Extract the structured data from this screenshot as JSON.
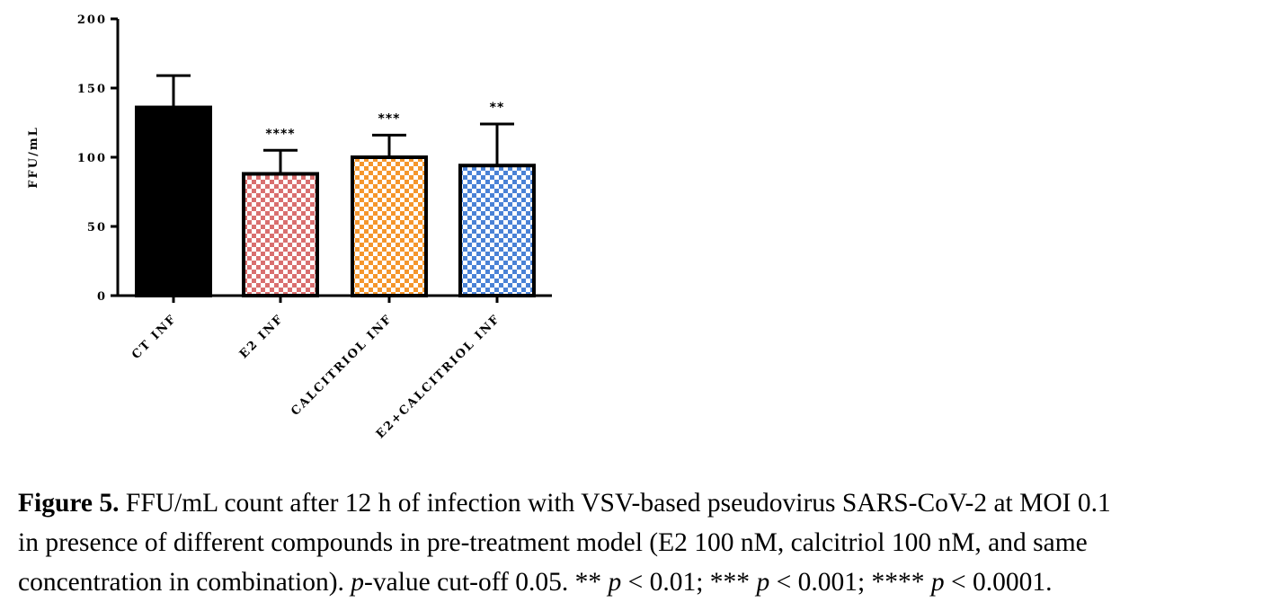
{
  "chart_data": {
    "type": "bar",
    "ylabel": "FFU/mL",
    "xlabel": "",
    "ylim": [
      0,
      200
    ],
    "yticks": [
      0,
      50,
      100,
      150,
      200
    ],
    "categories": [
      "CT INF",
      "E2 INF",
      "CALCITRIOL INF",
      "E2+CALCITRIOL INF"
    ],
    "values": [
      136,
      88,
      100,
      94
    ],
    "errors": [
      23,
      17,
      16,
      30
    ],
    "significance": [
      "",
      "****",
      "***",
      "**"
    ],
    "colors": [
      "#000000",
      "#d96f6f",
      "#f5962c",
      "#4a82d6"
    ],
    "patterns": [
      "solid",
      "checkered",
      "checkered",
      "checkered"
    ],
    "grid": false,
    "legend": "none"
  },
  "caption": {
    "label": "Figure 5.",
    "line1": "FFU/mL count after 12 h of infection with VSV-based pseudovirus SARS-CoV-2 at MOI 0.1",
    "line2": "in presence of different compounds in pre-treatment model (E2 100 nM, calcitriol 100 nM, and same",
    "line3_a": "concentration in combination). ",
    "line3_p": "p",
    "line3_b": "-value cut-off 0.05. ** ",
    "line3_c": " < 0.01; *** ",
    "line3_d": " < 0.001; **** ",
    "line3_e": " < 0.0001."
  }
}
